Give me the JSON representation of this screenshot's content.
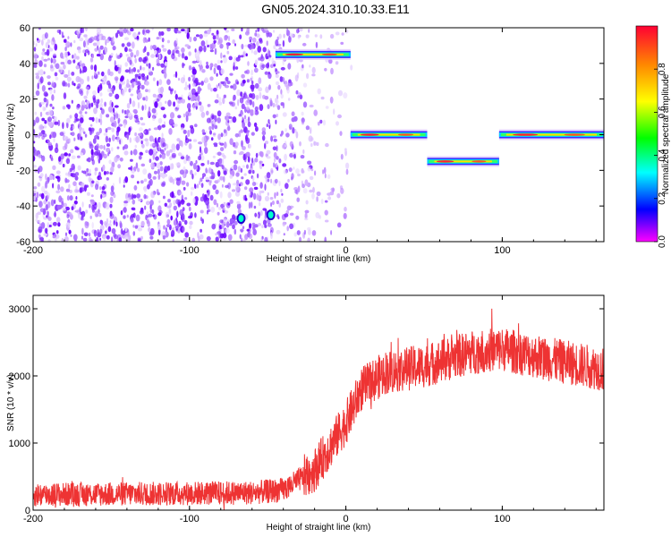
{
  "title": "GN05.2024.310.10.33.E11",
  "chart_data": [
    {
      "type": "heatmap",
      "xlabel": "Height of straight line (km)",
      "ylabel": "Frequency (Hz)",
      "xlim": [
        -200,
        165
      ],
      "ylim": [
        -60,
        60
      ],
      "xticks": [
        -200,
        -100,
        0,
        100
      ],
      "yticks": [
        60,
        40,
        20,
        0,
        -20,
        -40,
        -60
      ],
      "colorbar": {
        "label": "Normalized spectral amplitude",
        "range": [
          0,
          1
        ],
        "ticks": [
          0.0,
          0.2,
          0.4,
          0.6,
          0.8
        ]
      },
      "noise_region": {
        "x": [
          -200,
          -15
        ],
        "y": [
          -60,
          60
        ]
      },
      "segments": [
        {
          "x": [
            -45,
            3
          ],
          "freq": 45
        },
        {
          "x": [
            3,
            52
          ],
          "freq": 0
        },
        {
          "x": [
            52,
            98
          ],
          "freq": -15
        },
        {
          "x": [
            98,
            165
          ],
          "freq": 0
        }
      ],
      "spots": [
        {
          "x": -67,
          "freq": -47
        },
        {
          "x": -48,
          "freq": -45
        }
      ]
    },
    {
      "type": "line",
      "xlabel": "Height of straight line (km)",
      "ylabel": "SNR (10 * v/v)",
      "xlim": [
        -200,
        165
      ],
      "ylim": [
        0,
        3200
      ],
      "xticks": [
        -200,
        -100,
        0,
        100
      ],
      "yticks": [
        0,
        1000,
        2000,
        3000
      ],
      "color": "#ee3333",
      "trend": {
        "x": [
          -200,
          -150,
          -100,
          -60,
          -40,
          -20,
          0,
          10,
          25,
          50,
          80,
          100,
          130,
          165
        ],
        "y": [
          230,
          240,
          250,
          260,
          300,
          600,
          1300,
          1800,
          2050,
          2150,
          2350,
          2400,
          2250,
          2100
        ]
      }
    }
  ]
}
